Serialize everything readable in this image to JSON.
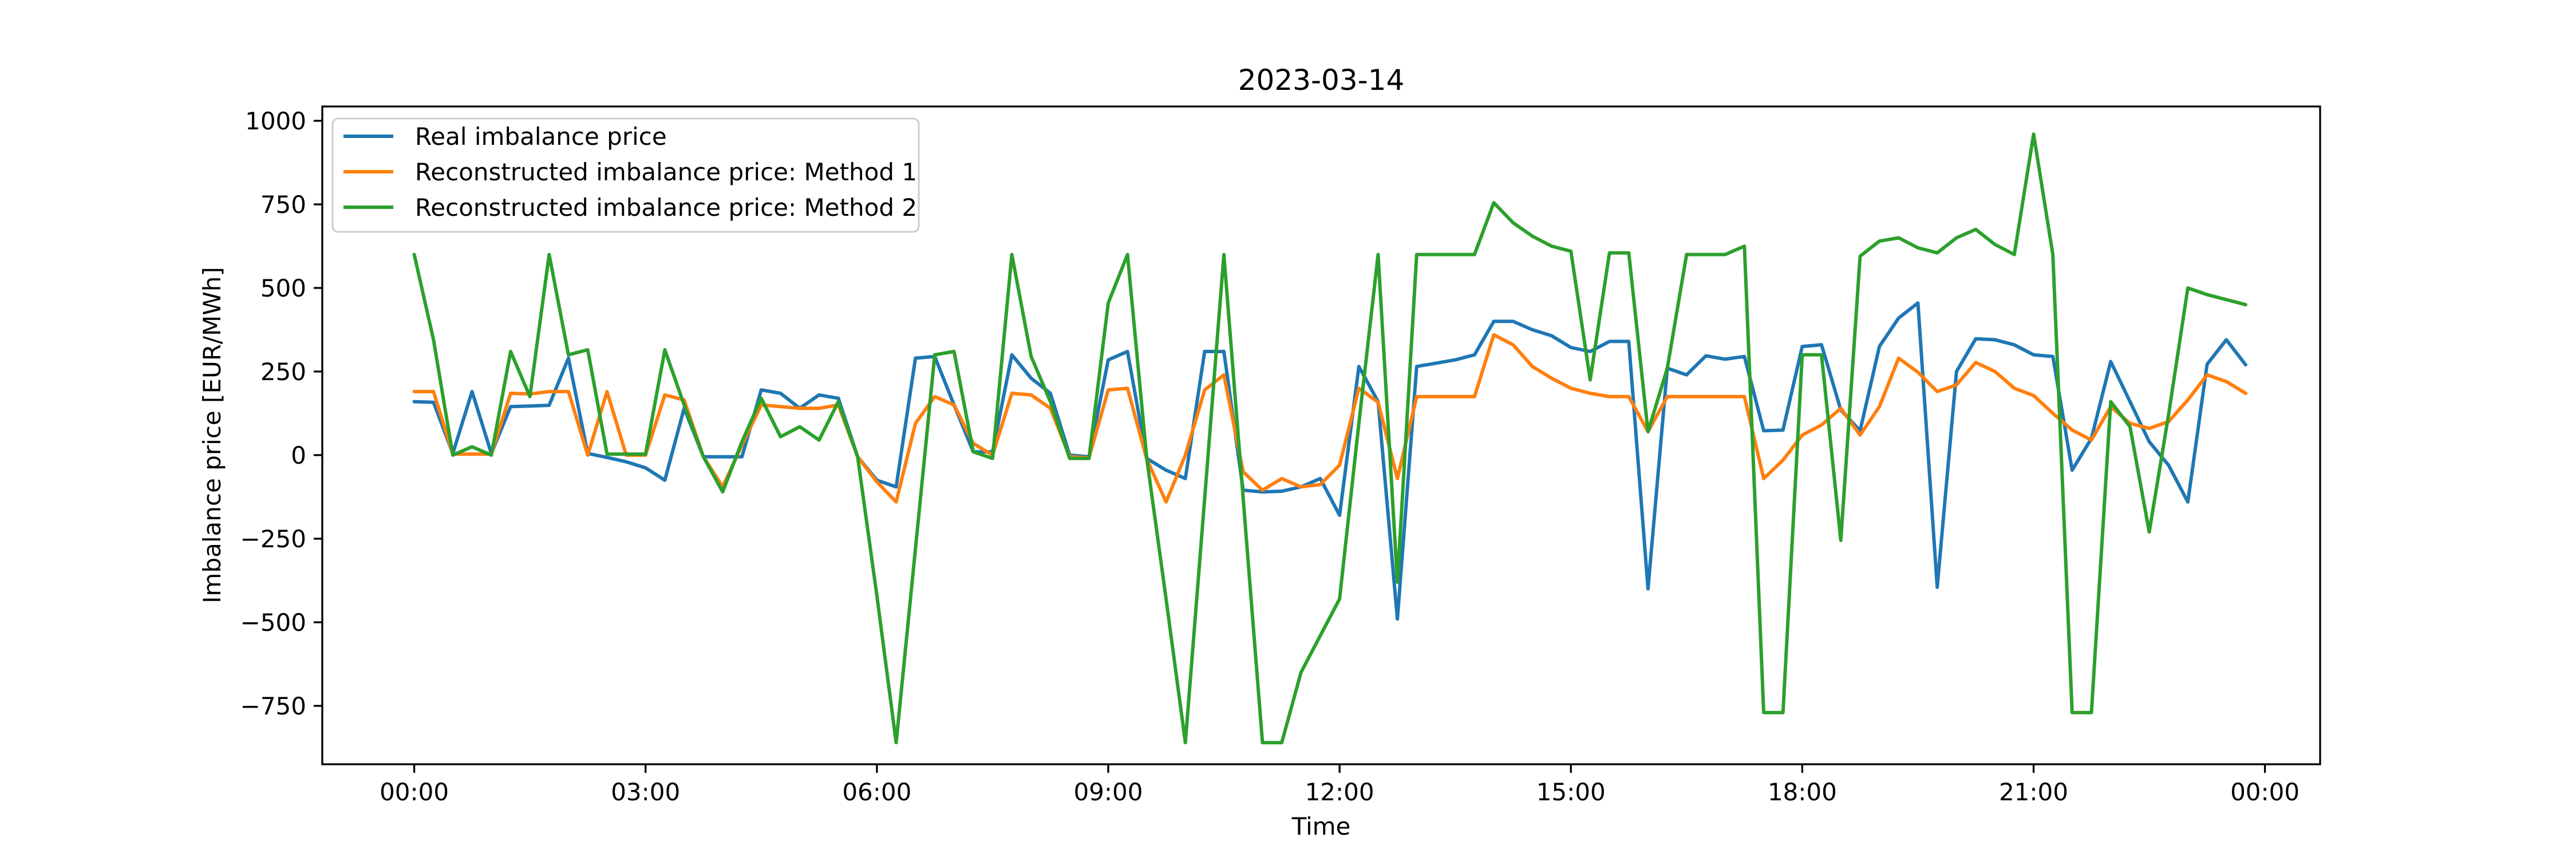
{
  "chart_data": {
    "type": "line",
    "title": "2023-03-14",
    "xlabel": "Time",
    "ylabel": "Imbalance price [EUR/MWh]",
    "x_start": "00:00",
    "x_interval_minutes": 15,
    "n_points": 96,
    "ylim": [
      -925,
      1042
    ],
    "yticks": [
      1000,
      750,
      500,
      250,
      0,
      -250,
      -500,
      -750
    ],
    "ytick_labels": [
      "1000",
      "750",
      "500",
      "250",
      "0",
      "−250",
      "−500",
      "−750"
    ],
    "xtick_labels": [
      "00:00",
      "03:00",
      "06:00",
      "09:00",
      "12:00",
      "15:00",
      "18:00",
      "21:00",
      "00:00"
    ],
    "grid": false,
    "legend_position": "upper left",
    "frame_color": "#000000",
    "background_color": "#ffffff",
    "legend_border_color": "#cccccc",
    "series": [
      {
        "name": "Real imbalance price",
        "color": "#1f77b4",
        "values": [
          160,
          158,
          5,
          190,
          5,
          145,
          147,
          149,
          290,
          5,
          -7,
          -20,
          -38,
          -75,
          140,
          -5,
          -5,
          -5,
          195,
          185,
          140,
          180,
          170,
          -5,
          -75,
          -95,
          290,
          295,
          150,
          10,
          10,
          300,
          230,
          185,
          0,
          -5,
          285,
          310,
          -10,
          -45,
          -70,
          310,
          310,
          -105,
          -110,
          -108,
          -95,
          -70,
          -180,
          265,
          160,
          -490,
          265,
          275,
          285,
          300,
          400,
          400,
          375,
          357,
          322,
          310,
          340,
          340,
          -400,
          260,
          240,
          297,
          287,
          295,
          73,
          75,
          325,
          330,
          135,
          73,
          325,
          410,
          455,
          -395,
          250,
          348,
          345,
          330,
          300,
          295,
          -45,
          50,
          280,
          160,
          40,
          -30,
          -140,
          272,
          345,
          270
        ]
      },
      {
        "name": "Reconstructed imbalance price: Method 1",
        "color": "#ff7f0e",
        "values": [
          190,
          190,
          3,
          3,
          3,
          185,
          183,
          190,
          190,
          0,
          190,
          0,
          0,
          180,
          165,
          -5,
          -95,
          30,
          150,
          145,
          140,
          140,
          150,
          -5,
          -80,
          -140,
          95,
          175,
          150,
          35,
          0,
          185,
          180,
          140,
          -5,
          -8,
          195,
          200,
          -12,
          -140,
          0,
          195,
          240,
          -50,
          -105,
          -70,
          -95,
          -88,
          -30,
          200,
          158,
          -70,
          175,
          175,
          175,
          175,
          360,
          330,
          265,
          230,
          200,
          185,
          175,
          175,
          70,
          175,
          175,
          175,
          175,
          175,
          -70,
          -15,
          60,
          90,
          140,
          60,
          145,
          290,
          248,
          190,
          210,
          277,
          250,
          200,
          178,
          125,
          75,
          45,
          145,
          95,
          80,
          100,
          165,
          240,
          220,
          185
        ]
      },
      {
        "name": "Reconstructed imbalance price: Method 2",
        "color": "#2ca02c",
        "values": [
          600,
          345,
          0,
          25,
          0,
          310,
          175,
          600,
          300,
          315,
          3,
          3,
          3,
          315,
          150,
          -5,
          -110,
          40,
          170,
          55,
          85,
          45,
          160,
          -5,
          -420,
          -860,
          -280,
          300,
          310,
          10,
          -10,
          600,
          295,
          160,
          -10,
          -10,
          455,
          600,
          -10,
          -430,
          -860,
          -130,
          600,
          -130,
          -860,
          -860,
          -650,
          -540,
          -430,
          95,
          600,
          -380,
          600,
          600,
          600,
          600,
          755,
          695,
          655,
          625,
          610,
          225,
          605,
          605,
          70,
          260,
          600,
          600,
          600,
          625,
          -770,
          -770,
          300,
          300,
          -255,
          595,
          640,
          650,
          620,
          605,
          650,
          675,
          630,
          600,
          960,
          600,
          -770,
          -770,
          160,
          85,
          -230,
          120,
          500,
          480,
          465,
          450
        ]
      }
    ]
  }
}
